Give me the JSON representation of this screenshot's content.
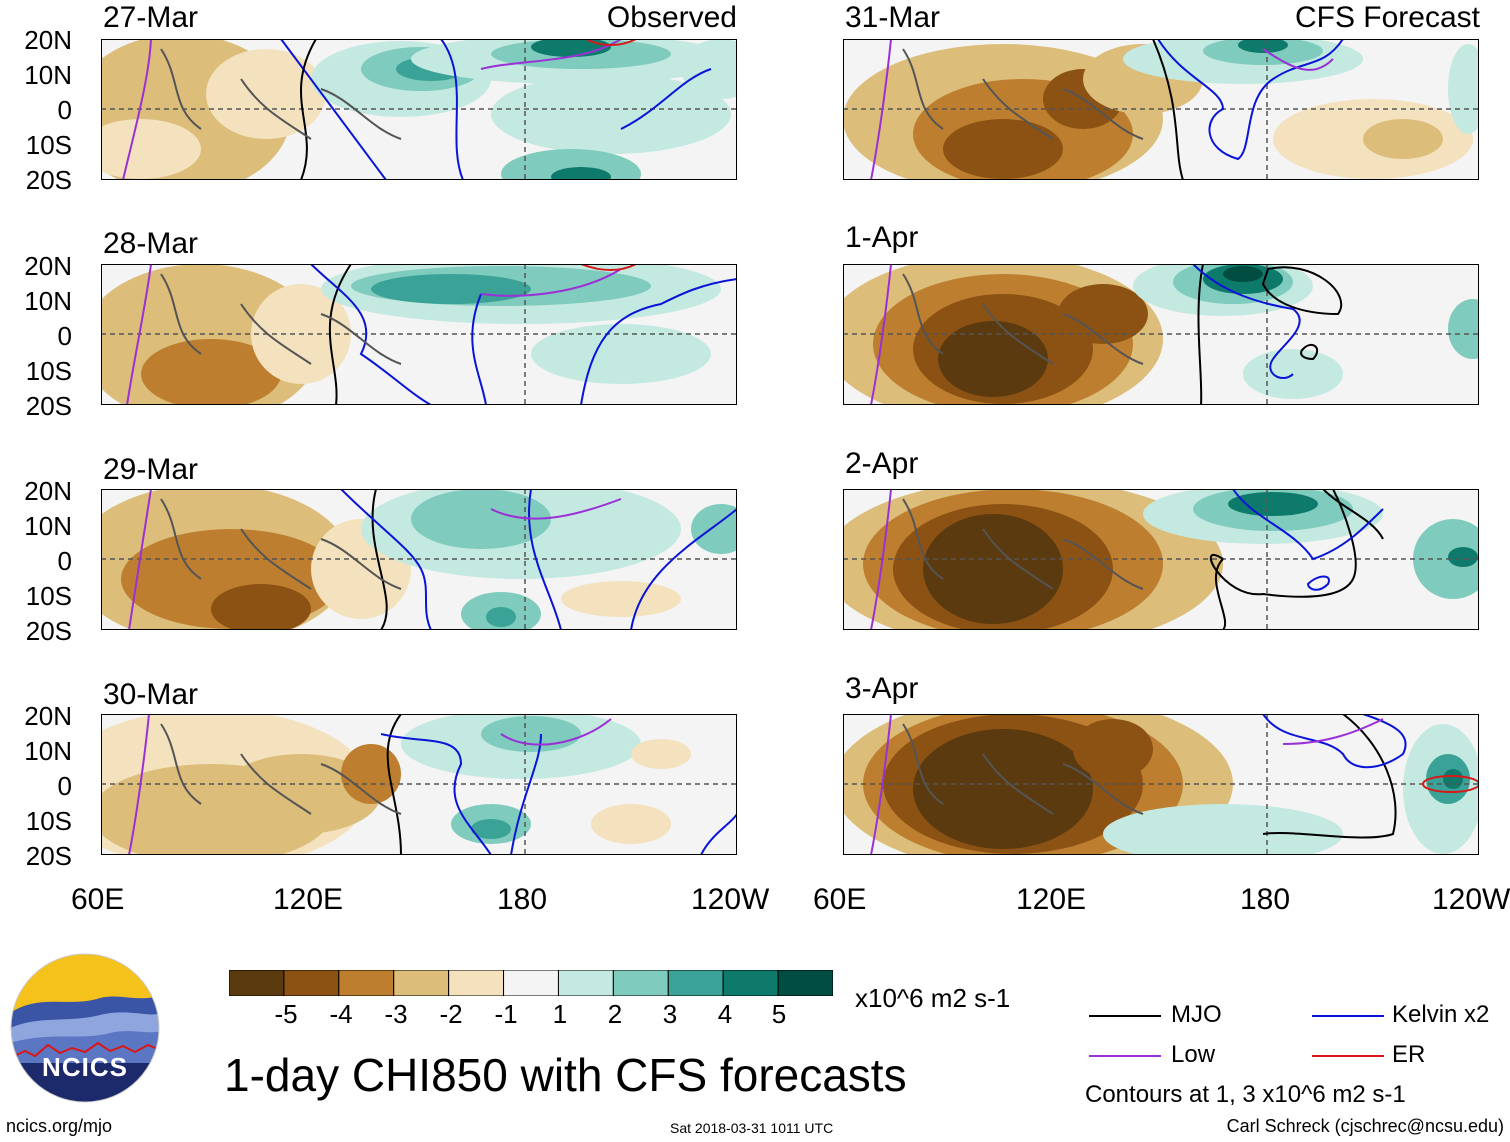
{
  "header": {
    "observed_label": "Observed",
    "forecast_label": "CFS Forecast"
  },
  "left_dates": [
    "27-Mar",
    "28-Mar",
    "29-Mar",
    "30-Mar"
  ],
  "right_dates": [
    "31-Mar",
    "1-Apr",
    "2-Apr",
    "3-Apr"
  ],
  "lat_labels": [
    "20N",
    "10N",
    "0",
    "10S",
    "20S"
  ],
  "lon_labels": [
    "60E",
    "120E",
    "180",
    "120W"
  ],
  "colorbar": {
    "ticks": [
      "-5",
      "-4",
      "-3",
      "-2",
      "-1",
      "1",
      "2",
      "3",
      "4",
      "5"
    ],
    "units": "x10^6 m2 s-1",
    "colors": [
      "#5a3a0e",
      "#8c5213",
      "#bd7f2f",
      "#dcbd7a",
      "#f3e2bd",
      "#f4f4f4",
      "#c4e9e1",
      "#7fcbbd",
      "#3ba298",
      "#0e7a6c",
      "#024d42"
    ]
  },
  "title": "1-day CHI850 with CFS forecasts",
  "legend": {
    "mjo": "MJO",
    "kelvin": "Kelvin x2",
    "low": "Low",
    "er": "ER",
    "contours_note": "Contours at 1, 3 x10^6 m2 s-1",
    "colors": {
      "mjo": "#000000",
      "kelvin": "#0a14d8",
      "low": "#9b30d6",
      "er": "#d81818"
    }
  },
  "logo": {
    "text": "NCICS"
  },
  "footer": {
    "left": "ncics.org/mjo",
    "center": "Sat 2018-03-31 1011 UTC",
    "right": "Carl Schreck (cjschrec@ncsu.edu)"
  },
  "chart_data": {
    "type": "heatmap",
    "title": "1-day CHI850 with CFS forecasts",
    "variable": "850-hPa velocity potential anomaly",
    "units": "x10^6 m2 s-1",
    "levels": [
      -5,
      -4,
      -3,
      -2,
      -1,
      1,
      2,
      3,
      4,
      5
    ],
    "x_axis": {
      "range": [
        "60E",
        "120W"
      ],
      "ticks": [
        "60E",
        "120E",
        "180",
        "120W"
      ]
    },
    "y_axis": {
      "range": [
        "20S",
        "20N"
      ],
      "ticks": [
        "20N",
        "10N",
        "0",
        "10S",
        "20S"
      ]
    },
    "panels": [
      {
        "date": "27-Mar",
        "source": "Observed"
      },
      {
        "date": "28-Mar",
        "source": "Observed"
      },
      {
        "date": "29-Mar",
        "source": "Observed"
      },
      {
        "date": "30-Mar",
        "source": "Observed"
      },
      {
        "date": "31-Mar",
        "source": "CFS Forecast"
      },
      {
        "date": "1-Apr",
        "source": "CFS Forecast"
      },
      {
        "date": "2-Apr",
        "source": "CFS Forecast"
      },
      {
        "date": "3-Apr",
        "source": "CFS Forecast"
      }
    ],
    "contours": [
      "MJO",
      "Kelvin x2",
      "Low",
      "ER"
    ],
    "contour_levels": [
      1,
      3
    ]
  }
}
